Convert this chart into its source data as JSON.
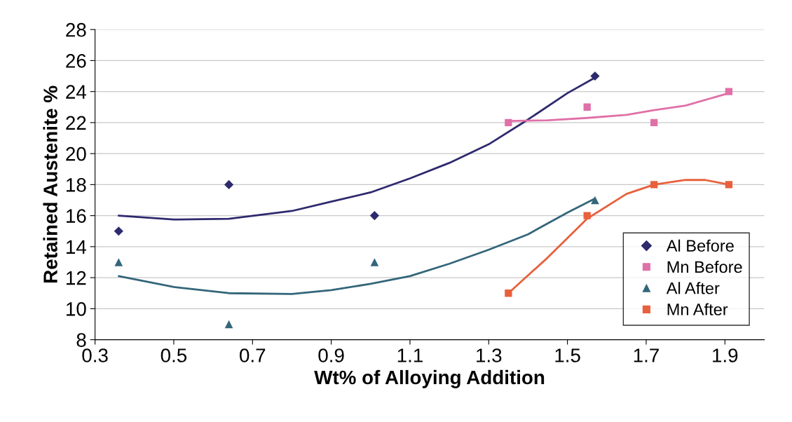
{
  "chart_data": {
    "type": "scatter",
    "xlabel": "Wt% of Alloying Addition",
    "ylabel": "Retained Austenite %",
    "xlim": [
      0.3,
      2.0
    ],
    "xticks": [
      0.3,
      0.5,
      0.7,
      0.9,
      1.1,
      1.3,
      1.5,
      1.7,
      1.9
    ],
    "ylim": [
      8,
      28
    ],
    "yticks": [
      8,
      10,
      12,
      14,
      16,
      18,
      20,
      22,
      24,
      26,
      28
    ],
    "grid": "y",
    "legend": "bottom right",
    "series": [
      {
        "name": "Al Before",
        "marker": "diamond",
        "color": "#2e2a6e",
        "x": [
          0.36,
          0.64,
          1.01,
          1.57
        ],
        "values": [
          15,
          18,
          16,
          25
        ]
      },
      {
        "name": "Mn Before",
        "marker": "square",
        "color": "#e070a8",
        "x": [
          1.35,
          1.55,
          1.72,
          1.91
        ],
        "values": [
          22,
          23,
          22,
          24
        ]
      },
      {
        "name": "Al After",
        "marker": "triangle",
        "color": "#33667a",
        "x": [
          0.36,
          0.64,
          1.01,
          1.57
        ],
        "values": [
          13,
          9,
          13,
          17
        ]
      },
      {
        "name": "Mn After",
        "marker": "square",
        "color": "#e8603c",
        "x": [
          1.35,
          1.55,
          1.72,
          1.91
        ],
        "values": [
          11,
          16,
          18,
          18
        ]
      },
      {
        "type": "line",
        "marker": "none",
        "color": "#2e2a6e",
        "x": [
          0.36,
          0.5,
          0.64,
          0.8,
          0.9,
          1.0,
          1.1,
          1.2,
          1.3,
          1.4,
          1.5,
          1.57
        ],
        "values": [
          16.0,
          15.75,
          15.8,
          16.3,
          16.9,
          17.5,
          18.4,
          19.4,
          20.6,
          22.2,
          23.9,
          24.9
        ]
      },
      {
        "type": "line",
        "marker": "none",
        "color": "#e070a8",
        "x": [
          1.35,
          1.45,
          1.55,
          1.65,
          1.72,
          1.8,
          1.91
        ],
        "values": [
          22.1,
          22.15,
          22.3,
          22.5,
          22.8,
          23.1,
          23.9
        ]
      },
      {
        "type": "line",
        "marker": "none",
        "color": "#33667a",
        "x": [
          0.36,
          0.5,
          0.64,
          0.8,
          0.9,
          1.0,
          1.1,
          1.2,
          1.3,
          1.4,
          1.5,
          1.57
        ],
        "values": [
          12.1,
          11.4,
          11.0,
          10.95,
          11.2,
          11.6,
          12.1,
          12.9,
          13.8,
          14.8,
          16.2,
          17.1
        ]
      },
      {
        "type": "line",
        "marker": "none",
        "color": "#e8603c",
        "x": [
          1.35,
          1.45,
          1.55,
          1.65,
          1.72,
          1.8,
          1.85,
          1.91
        ],
        "values": [
          11.0,
          13.3,
          15.8,
          17.4,
          18.0,
          18.3,
          18.3,
          18.0
        ]
      }
    ]
  }
}
